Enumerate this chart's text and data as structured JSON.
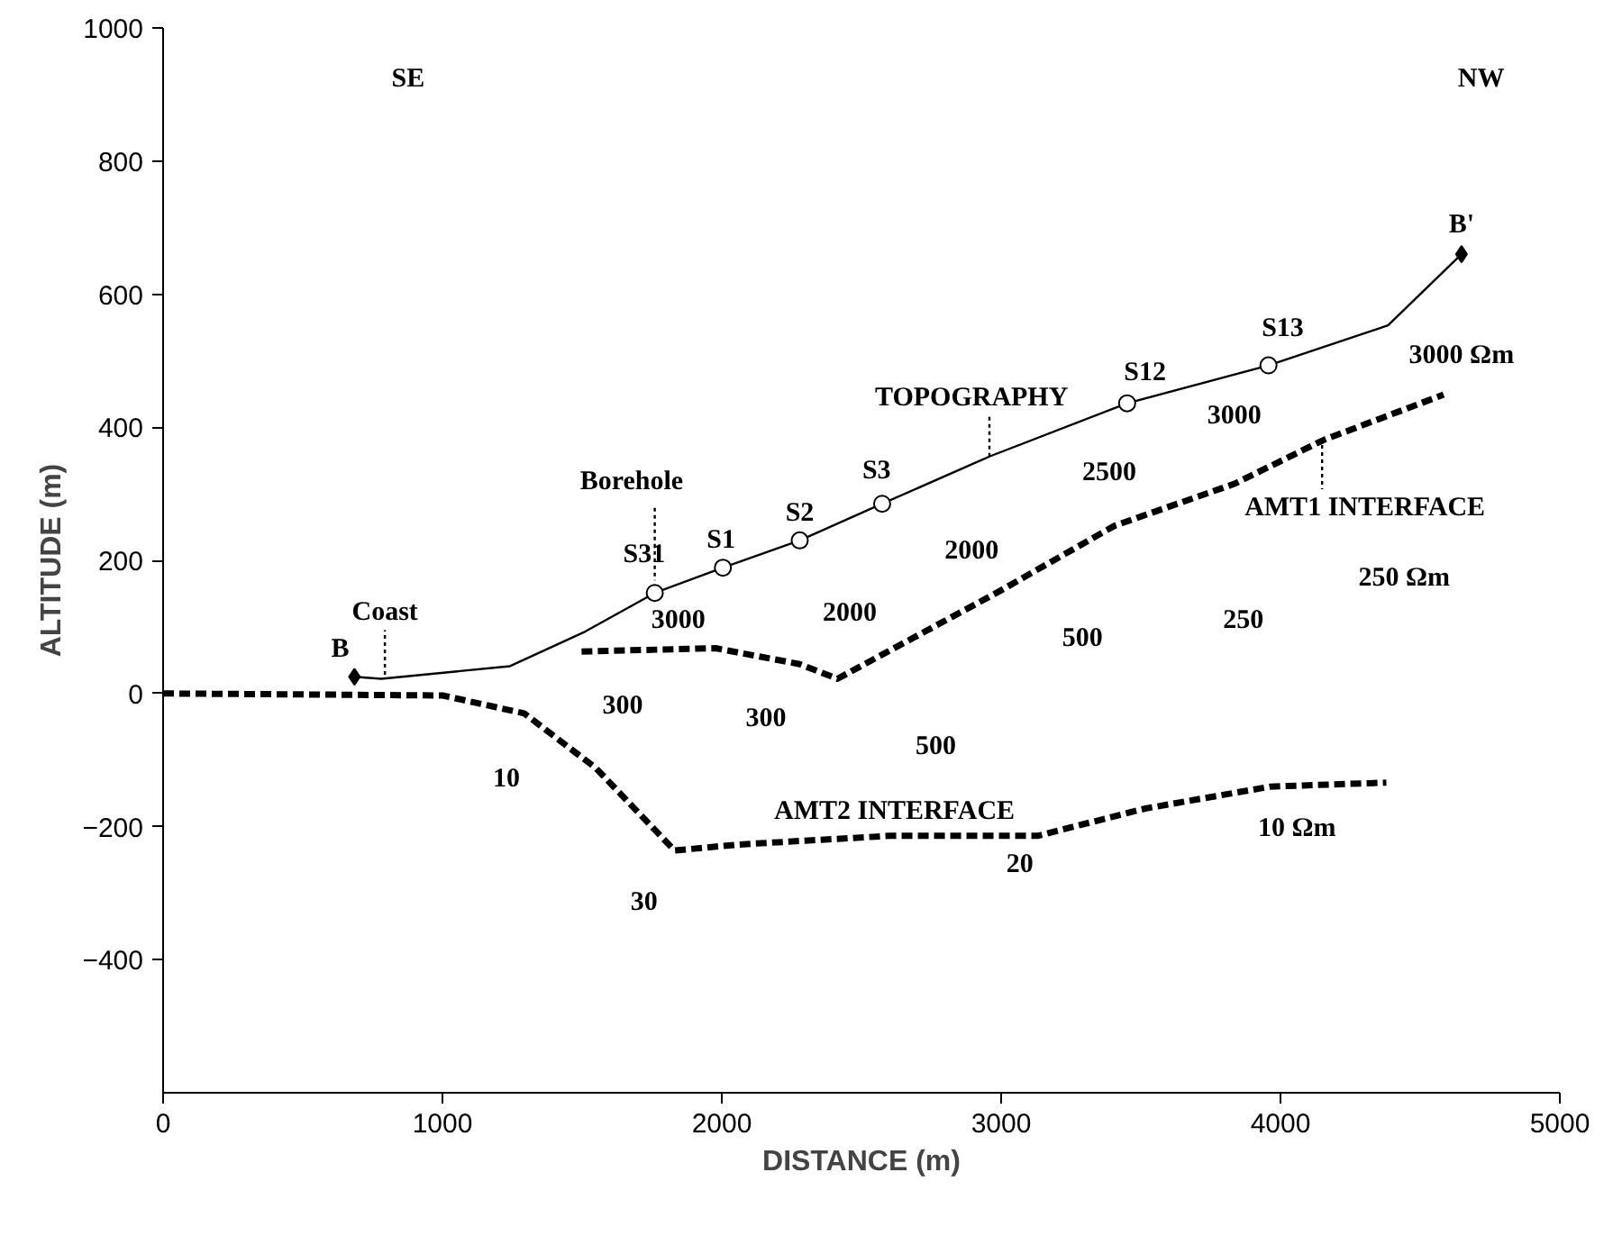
{
  "chart_data": {
    "type": "line",
    "xlabel": "DISTANCE (m)",
    "ylabel": "ALTITUDE (m)",
    "xlim": [
      0,
      5000
    ],
    "xticks": [
      0,
      1000,
      2000,
      3000,
      4000,
      5000
    ],
    "ylim": [
      -600,
      1000
    ],
    "yticks": [
      -400,
      -200,
      0,
      200,
      400,
      600,
      800,
      1000
    ],
    "grid": false,
    "series": [
      {
        "line_style": "solid",
        "color": "#000000",
        "x": [
          685,
          781,
          1242,
          1511,
          1760,
          2004,
          2279,
          2574,
          2958,
          3451,
          3957,
          4385,
          4648
        ],
        "values": [
          25,
          22,
          41,
          93,
          151,
          189,
          230,
          285,
          356,
          436,
          493,
          553,
          660
        ]
      },
      {
        "line_style": "dashed",
        "color": "#000000",
        "x": [
          1498,
          1978,
          2279,
          2414,
          2983,
          3406,
          3835,
          4155,
          4584
        ],
        "values": [
          63,
          68,
          44,
          22,
          151,
          252,
          315,
          381,
          449
        ]
      },
      {
        "line_style": "dashed",
        "color": "#000000",
        "x": [
          0,
          1000,
          1293,
          1549,
          1831,
          2061,
          2600,
          3130,
          3515,
          3963,
          4379
        ],
        "values": [
          0,
          -3,
          -30,
          -112,
          -236,
          -227,
          -214,
          -214,
          -173,
          -140,
          -134
        ]
      },
      {
        "type": "scatter",
        "marker": "circle",
        "color": "#000000",
        "x": [
          1760,
          2004,
          2279,
          2574,
          3451,
          3957
        ],
        "values": [
          151,
          189,
          230,
          285,
          436,
          493
        ]
      },
      {
        "type": "scatter",
        "marker": "diamond",
        "color": "#000000",
        "x": [
          685,
          4648
        ],
        "values": [
          25,
          660
        ]
      },
      {
        "line_style": "dotted",
        "color": "#000000",
        "x": [
          794,
          794
        ],
        "values": [
          28,
          95
        ]
      },
      {
        "line_style": "dotted",
        "color": "#000000",
        "x": [
          1760,
          1760
        ],
        "values": [
          279,
          170
        ]
      },
      {
        "line_style": "dotted",
        "color": "#000000",
        "x": [
          2958,
          2958
        ],
        "values": [
          356,
          416
        ]
      },
      {
        "line_style": "dotted",
        "color": "#000000",
        "x": [
          4149,
          4149
        ],
        "values": [
          384,
          307
        ]
      }
    ],
    "annotations": [
      "SE",
      "NW",
      "Coast",
      "B",
      "Borehole",
      "S31",
      "S1",
      "S2",
      "S3",
      "TOPOGRAPHY",
      "S12",
      "S13",
      "B'",
      "3000 Ωm",
      "3000",
      "2500",
      "AMT1 INTERFACE",
      "2000",
      "2000",
      "250 Ωm",
      "250",
      "500",
      "3000",
      "300",
      "300",
      "500",
      "10",
      "30",
      "AMT2 INTERFACE",
      "20",
      "10 Ωm"
    ]
  }
}
